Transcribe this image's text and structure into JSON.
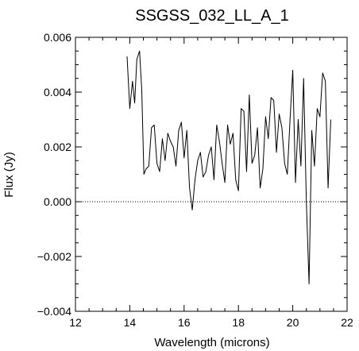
{
  "chart_data": {
    "type": "line",
    "title": "SSGSS_032_LL_A_1",
    "xlabel": "Wavelength (microns)",
    "ylabel": "Flux (Jy)",
    "xlim": [
      12,
      22
    ],
    "ylim": [
      -0.004,
      0.006
    ],
    "xticks": [
      12,
      14,
      16,
      18,
      20,
      22
    ],
    "xtick_labels": [
      "12",
      "14",
      "16",
      "18",
      "20",
      "22"
    ],
    "yticks": [
      -0.004,
      -0.002,
      0.0,
      0.002,
      0.004,
      0.006
    ],
    "ytick_labels": [
      "−0.004",
      "−0.002",
      "0.000",
      "0.002",
      "0.004",
      "0.006"
    ],
    "zero_line": {
      "y": 0.0,
      "style": "dotted"
    },
    "grid": false,
    "series": [
      {
        "x": [
          13.9,
          14.0,
          14.1,
          14.18,
          14.26,
          14.36,
          14.44,
          14.52,
          14.6,
          14.7,
          14.8,
          14.9,
          15.0,
          15.1,
          15.2,
          15.3,
          15.4,
          15.5,
          15.6,
          15.7,
          15.8,
          15.9,
          16.0,
          16.1,
          16.2,
          16.3,
          16.4,
          16.5,
          16.6,
          16.7,
          16.8,
          16.9,
          17.0,
          17.1,
          17.2,
          17.3,
          17.4,
          17.5,
          17.6,
          17.7,
          17.8,
          17.9,
          18.0,
          18.1,
          18.2,
          18.3,
          18.4,
          18.5,
          18.6,
          18.7,
          18.8,
          18.9,
          19.0,
          19.1,
          19.2,
          19.3,
          19.4,
          19.5,
          19.6,
          19.7,
          19.8,
          19.9,
          20.0,
          20.1,
          20.2,
          20.3,
          20.4,
          20.5,
          20.6,
          20.7,
          20.8,
          20.9,
          21.0,
          21.1,
          21.2,
          21.3,
          21.4
        ],
        "y": [
          0.0053,
          0.0034,
          0.0044,
          0.0036,
          0.0052,
          0.0055,
          0.0041,
          0.001,
          0.0012,
          0.0013,
          0.0027,
          0.0028,
          0.0014,
          0.0011,
          0.0023,
          0.0015,
          0.0025,
          0.0022,
          0.002,
          0.0013,
          0.0026,
          0.0029,
          0.0016,
          0.0026,
          0.0005,
          -0.0003,
          0.0008,
          0.0015,
          0.0018,
          0.0009,
          0.0011,
          0.0017,
          0.002,
          0.0008,
          0.0028,
          0.0022,
          0.0014,
          0.0007,
          0.0028,
          0.0021,
          0.0025,
          0.0008,
          0.0004,
          0.0034,
          0.0033,
          0.0011,
          0.0039,
          0.0014,
          0.0017,
          0.0027,
          0.0005,
          0.0012,
          0.0031,
          0.0023,
          0.0038,
          0.0037,
          0.0018,
          0.0032,
          0.0027,
          0.0014,
          0.001,
          0.003,
          0.0048,
          0.0007,
          0.003,
          0.0013,
          0.0045,
          0.0,
          -0.003,
          0.0026,
          0.0013,
          0.0034,
          0.0031,
          0.0047,
          0.0044,
          0.0005,
          0.003
        ]
      }
    ]
  }
}
